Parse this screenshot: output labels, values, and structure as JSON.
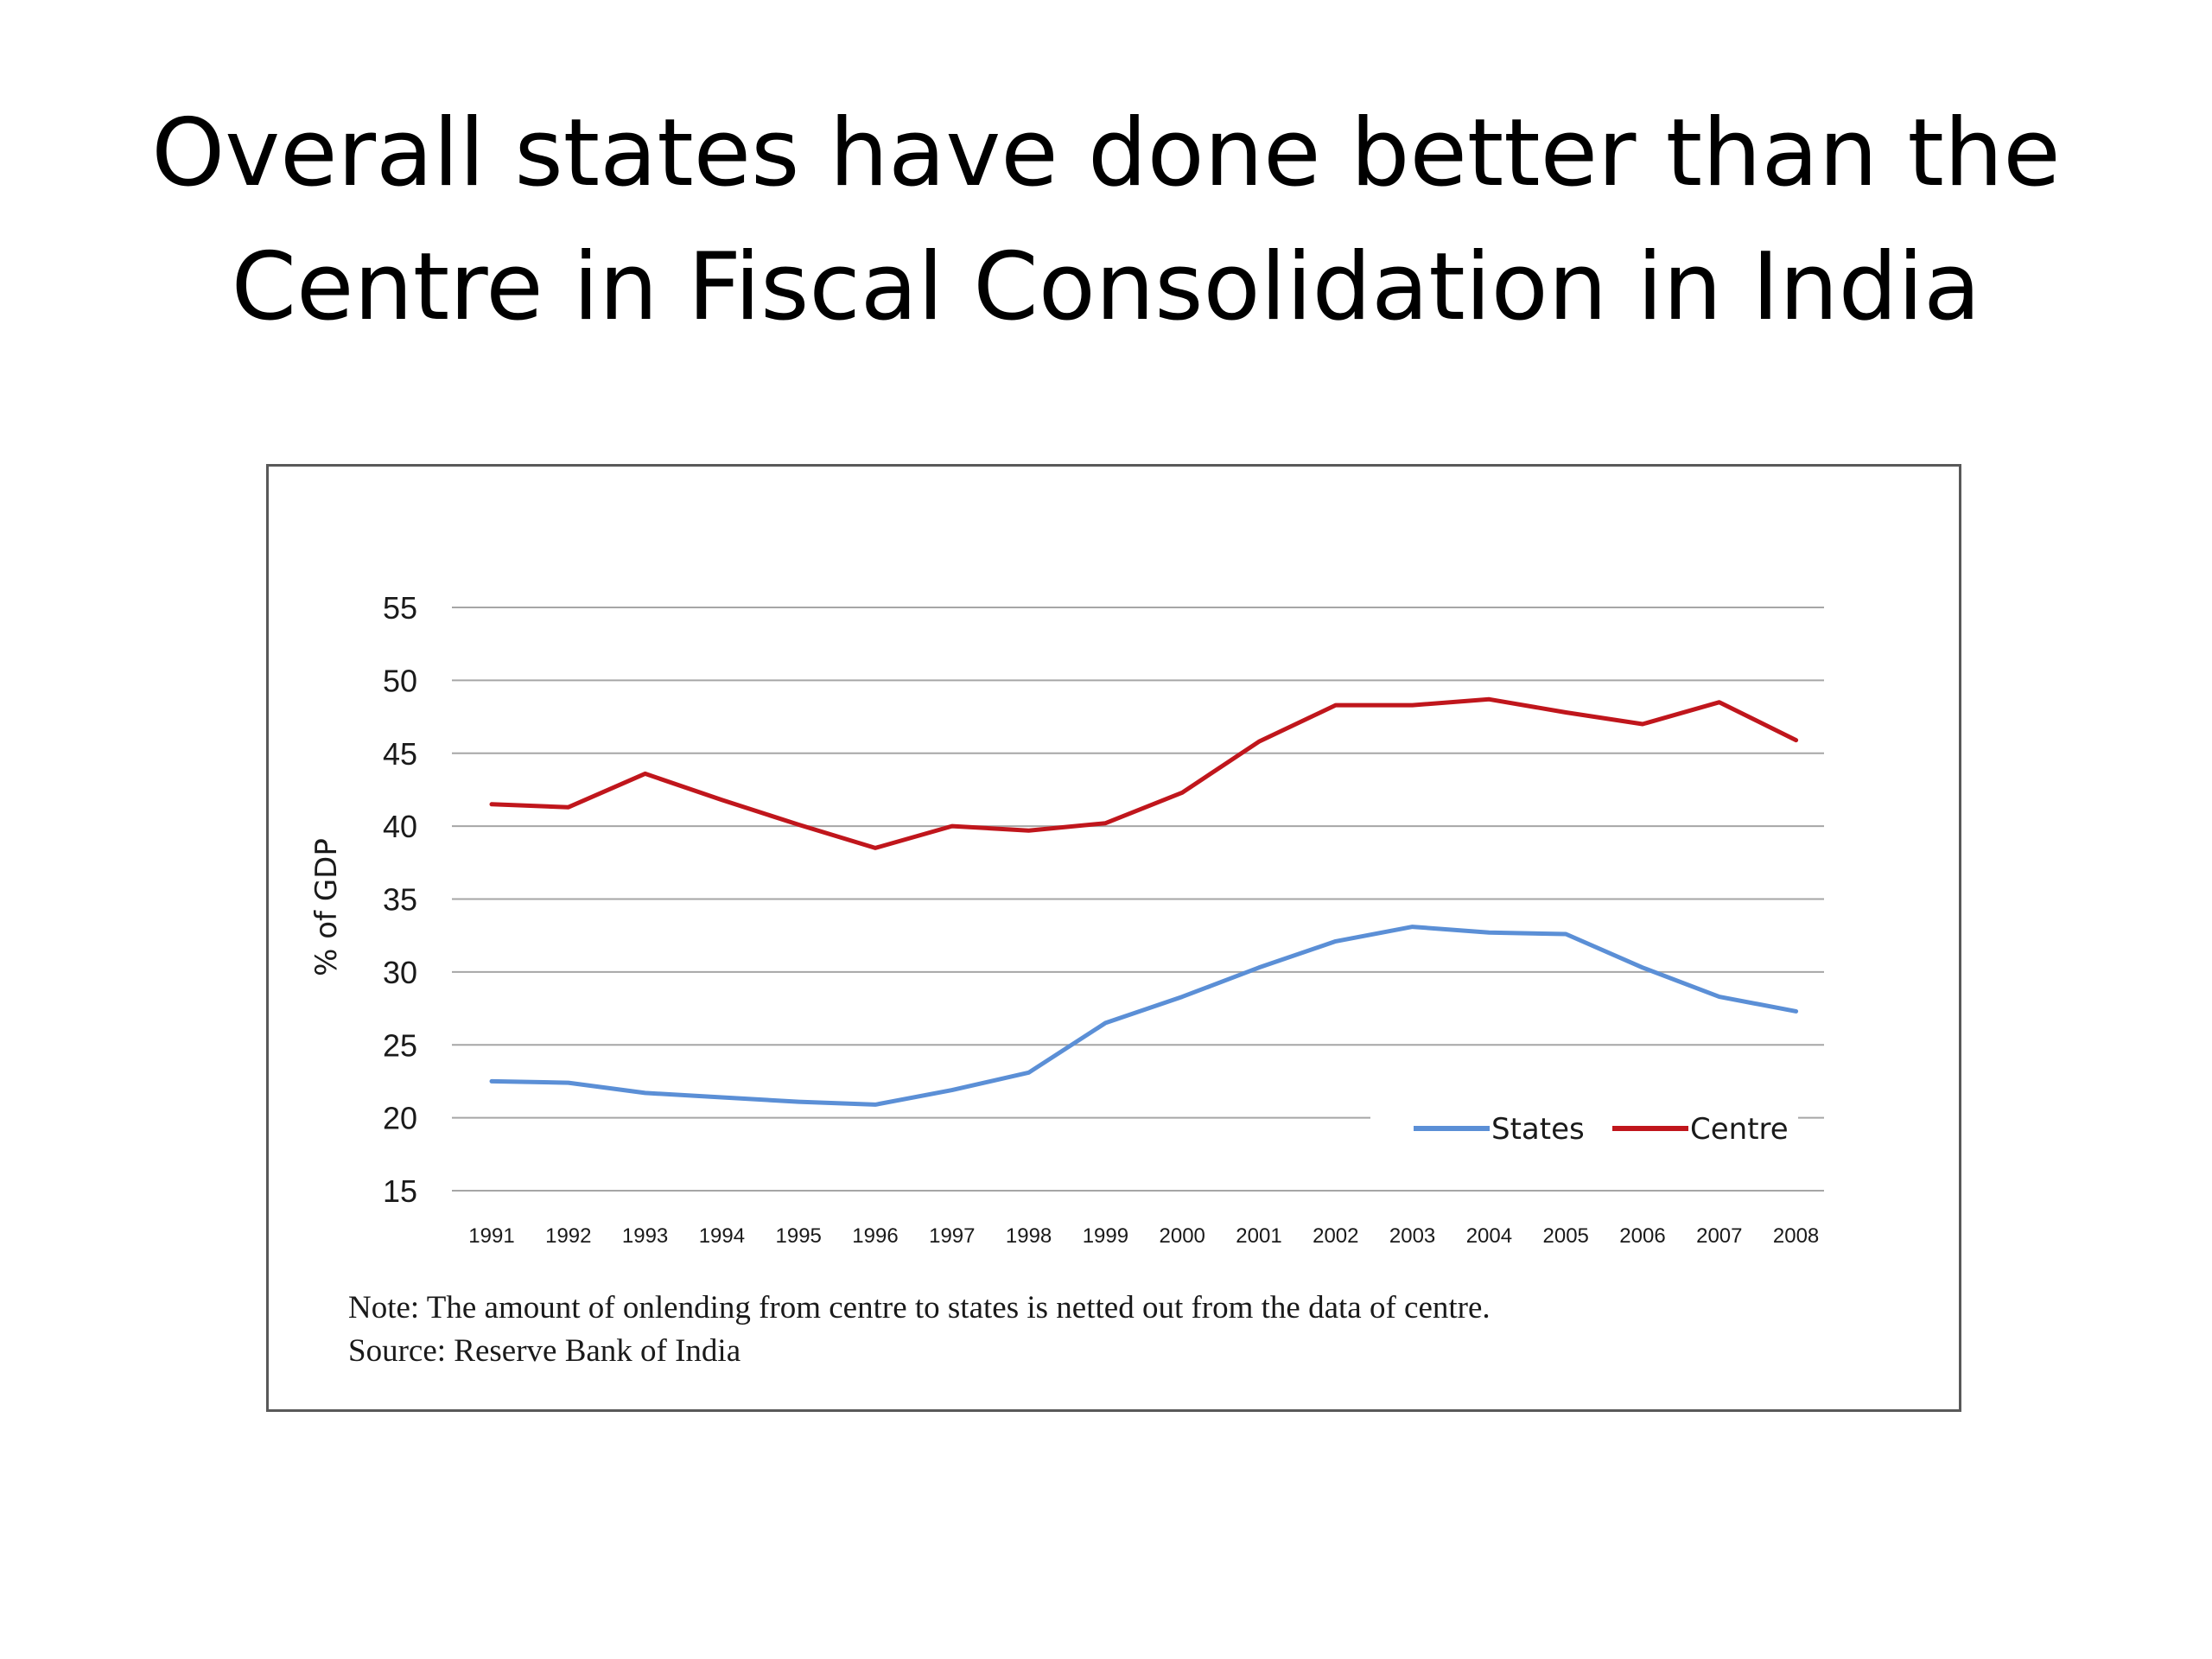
{
  "slide": {
    "title_line1": "Overall states have done better than the",
    "title_line2": "Centre in Fiscal Consolidation in India",
    "note": "Note: The amount of onlending from centre to states is netted out from  the data of centre.",
    "source": "Source: Reserve Bank of India"
  },
  "chart_data": {
    "type": "line",
    "title": "",
    "xlabel": "",
    "ylabel": "% of GDP",
    "x": [
      "1991",
      "1992",
      "1993",
      "1994",
      "1995",
      "1996",
      "1997",
      "1998",
      "1999",
      "2000",
      "2001",
      "2002",
      "2003",
      "2004",
      "2005",
      "2006",
      "2007",
      "2008"
    ],
    "yticks": [
      "55",
      "50",
      "45",
      "40",
      "35",
      "30",
      "25",
      "20",
      "15"
    ],
    "ylim": [
      15,
      55
    ],
    "grid": "horizontal",
    "legend_position": "bottom-right",
    "series": [
      {
        "name": "States",
        "color": "#5b8fd6",
        "values": [
          22.5,
          22.4,
          21.7,
          21.4,
          21.1,
          20.9,
          21.9,
          23.1,
          26.5,
          28.3,
          30.3,
          32.1,
          33.1,
          32.7,
          32.6,
          30.3,
          28.3,
          27.3
        ]
      },
      {
        "name": "Centre",
        "color": "#c0161c",
        "values": [
          41.5,
          41.3,
          43.6,
          41.8,
          40.1,
          38.5,
          40.0,
          39.7,
          40.2,
          42.3,
          45.8,
          48.3,
          48.3,
          48.7,
          47.8,
          47.0,
          48.5,
          45.9
        ]
      }
    ]
  }
}
